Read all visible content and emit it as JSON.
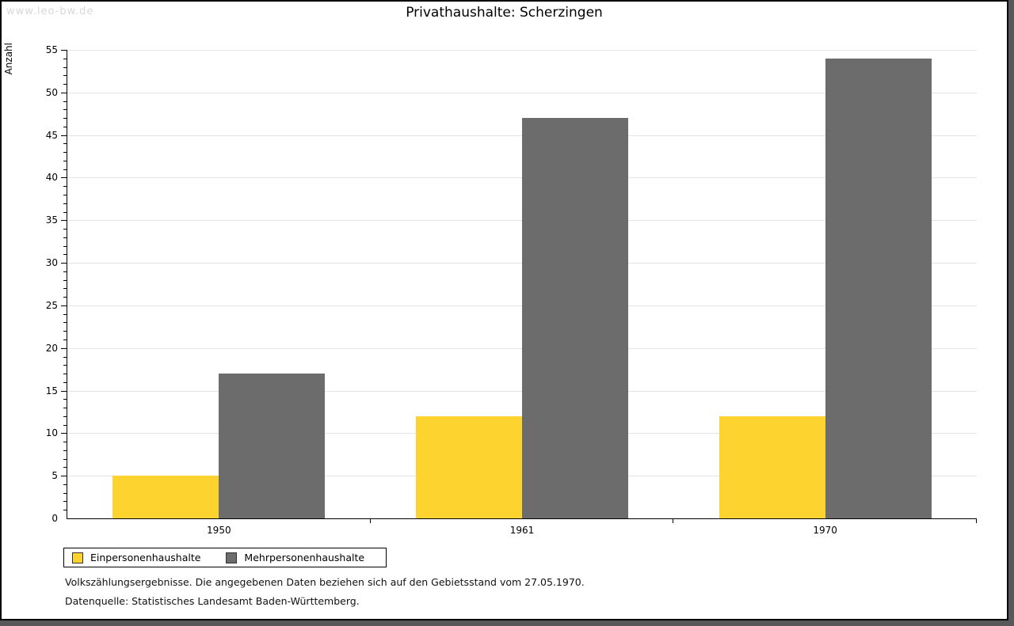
{
  "watermark": "www.leo-bw.de",
  "header": {
    "title": "Privathaushalte: Scherzingen"
  },
  "chart_data": {
    "type": "bar",
    "title": "Privathaushalte: Scherzingen",
    "ylabel": "Anzahl",
    "xlabel": "",
    "categories": [
      "1950",
      "1961",
      "1970"
    ],
    "series": [
      {
        "name": "Einpersonenhaushalte",
        "color": "#FCD32F",
        "values": [
          5,
          12,
          12
        ]
      },
      {
        "name": "Mehrpersonenhaushalte",
        "color": "#6C6C6C",
        "values": [
          17,
          47,
          54
        ]
      }
    ],
    "ylim": [
      0,
      55
    ],
    "ytick_step": 5,
    "yminor_step": 1,
    "grid": "horizontal-major",
    "legend_position": "bottom-left"
  },
  "footnotes": {
    "line1": "Volkszählungsergebnisse. Die angegebenen Daten beziehen sich auf den Gebietsstand vom 27.05.1970.",
    "line2": "Datenquelle: Statistisches Landesamt Baden-Württemberg."
  },
  "colors": {
    "grid": "#E4E4E4",
    "axis": "#000000",
    "frame_band": "#58585A",
    "watermark": "#D8D8D8"
  }
}
